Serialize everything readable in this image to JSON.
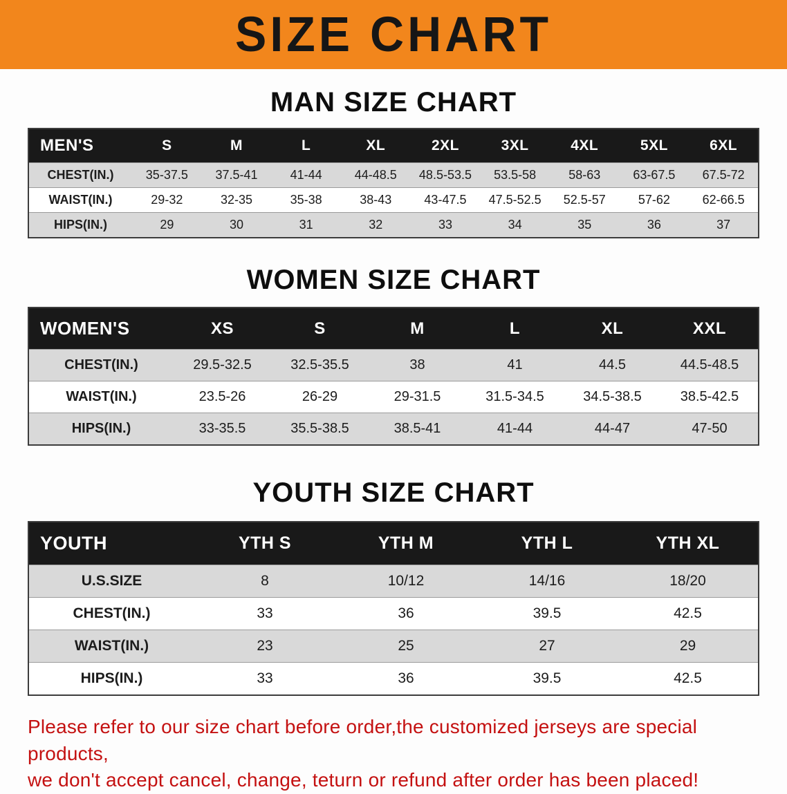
{
  "banner": {
    "title": "SIZE CHART"
  },
  "colors": {
    "banner_bg": "#f2861c",
    "table_header_bg": "#191919",
    "row_alt_bg": "#d9d9d9",
    "disclaimer_text": "#c41111"
  },
  "sections": [
    {
      "heading": "MAN SIZE CHART",
      "table": {
        "header": [
          "MEN'S",
          "S",
          "M",
          "L",
          "XL",
          "2XL",
          "3XL",
          "4XL",
          "5XL",
          "6XL"
        ],
        "rows": [
          [
            "CHEST(IN.)",
            "35-37.5",
            "37.5-41",
            "41-44",
            "44-48.5",
            "48.5-53.5",
            "53.5-58",
            "58-63",
            "63-67.5",
            "67.5-72"
          ],
          [
            "WAIST(IN.)",
            "29-32",
            "32-35",
            "35-38",
            "38-43",
            "43-47.5",
            "47.5-52.5",
            "52.5-57",
            "57-62",
            "62-66.5"
          ],
          [
            "HIPS(IN.)",
            "29",
            "30",
            "31",
            "32",
            "33",
            "34",
            "35",
            "36",
            "37"
          ]
        ]
      }
    },
    {
      "heading": "WOMEN SIZE CHART",
      "table": {
        "header": [
          "WOMEN'S",
          "XS",
          "S",
          "M",
          "L",
          "XL",
          "XXL"
        ],
        "rows": [
          [
            "CHEST(IN.)",
            "29.5-32.5",
            "32.5-35.5",
            "38",
            "41",
            "44.5",
            "44.5-48.5"
          ],
          [
            "WAIST(IN.)",
            "23.5-26",
            "26-29",
            "29-31.5",
            "31.5-34.5",
            "34.5-38.5",
            "38.5-42.5"
          ],
          [
            "HIPS(IN.)",
            "33-35.5",
            "35.5-38.5",
            "38.5-41",
            "41-44",
            "44-47",
            "47-50"
          ]
        ]
      }
    },
    {
      "heading": "YOUTH SIZE CHART",
      "table": {
        "header": [
          "YOUTH",
          "YTH S",
          "YTH M",
          "YTH L",
          "YTH XL"
        ],
        "rows": [
          [
            "U.S.SIZE",
            "8",
            "10/12",
            "14/16",
            "18/20"
          ],
          [
            "CHEST(IN.)",
            "33",
            "36",
            "39.5",
            "42.5"
          ],
          [
            "WAIST(IN.)",
            "23",
            "25",
            "27",
            "29"
          ],
          [
            "HIPS(IN.)",
            "33",
            "36",
            "39.5",
            "42.5"
          ]
        ]
      }
    }
  ],
  "disclaimer": {
    "line1": "Please refer to our size chart before order,the customized jerseys are special products,",
    "line2": "we don't accept cancel, change, teturn or refund after order has been placed!"
  }
}
